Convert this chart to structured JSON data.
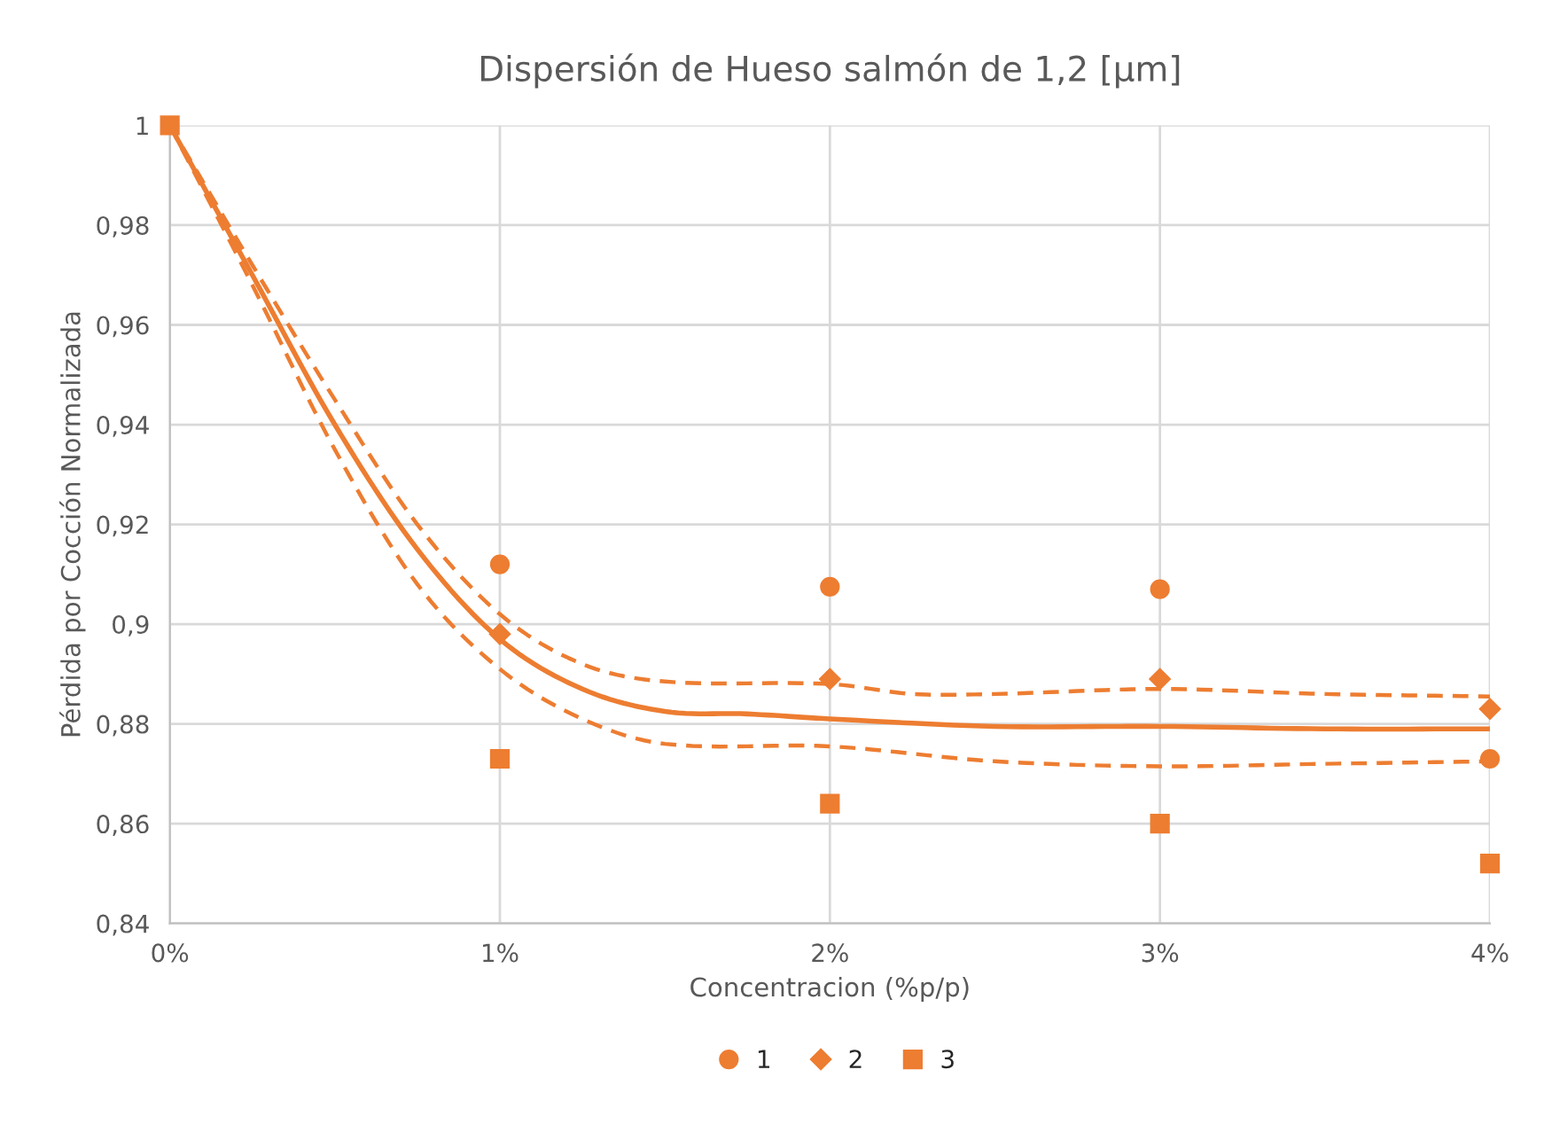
{
  "chart_data": {
    "type": "scatter",
    "title": "Dispersión de Hueso salmón de 1,2 [µm]",
    "xlabel": "Concentracion (%p/p)",
    "ylabel": "Pérdida por Cocción Normalizada",
    "x": [
      0,
      1,
      2,
      3,
      4
    ],
    "series": [
      {
        "name": "1",
        "color": "#ed7d31",
        "marker": "circle",
        "values": [
          null,
          0.912,
          0.9075,
          0.907,
          0.873
        ]
      },
      {
        "name": "2",
        "color": "#ed7d31",
        "marker": "diamond",
        "values": [
          null,
          0.898,
          0.889,
          0.889,
          0.883
        ]
      },
      {
        "name": "3",
        "color": "#ed7d31",
        "marker": "square",
        "values": [
          1,
          0.873,
          0.864,
          0.86,
          0.852
        ]
      },
      {
        "type": "line",
        "color": "#ed7d31",
        "line_style": "solid",
        "marker": "none",
        "x": [
          0,
          0.25,
          0.5,
          0.75,
          1,
          1.25,
          1.5,
          1.75,
          2,
          2.5,
          3,
          3.5,
          4
        ],
        "values": [
          1,
          0.97,
          0.94,
          0.915,
          0.897,
          0.887,
          0.8825,
          0.882,
          0.881,
          0.8795,
          0.8795,
          0.879,
          0.879
        ]
      },
      {
        "type": "line",
        "color": "#ed7d31",
        "line_style": "dashed",
        "marker": "none",
        "x": [
          0,
          0.25,
          0.5,
          0.75,
          1,
          1.25,
          1.5,
          2,
          2.25,
          2.5,
          3,
          3.5,
          4
        ],
        "values": [
          1,
          0.972,
          0.945,
          0.92,
          0.902,
          0.892,
          0.8885,
          0.888,
          0.886,
          0.886,
          0.887,
          0.886,
          0.8855
        ]
      },
      {
        "type": "line",
        "color": "#ed7d31",
        "line_style": "dashed",
        "marker": "none",
        "x": [
          0,
          0.25,
          0.5,
          0.75,
          1,
          1.25,
          1.5,
          2,
          2.5,
          3,
          3.5,
          4
        ],
        "values": [
          1,
          0.968,
          0.935,
          0.908,
          0.891,
          0.881,
          0.876,
          0.8755,
          0.8725,
          0.8715,
          0.872,
          0.8725
        ]
      }
    ],
    "xlim": [
      0,
      4
    ],
    "xticks": [
      {
        "value": 0,
        "label": "0%"
      },
      {
        "value": 1,
        "label": "1%"
      },
      {
        "value": 2,
        "label": "2%"
      },
      {
        "value": 3,
        "label": "3%"
      },
      {
        "value": 4,
        "label": "4%"
      }
    ],
    "ylim": [
      0.84,
      1
    ],
    "yticks": [
      {
        "value": 0.84,
        "label": "0,84"
      },
      {
        "value": 0.86,
        "label": "0,86"
      },
      {
        "value": 0.88,
        "label": "0,88"
      },
      {
        "value": 0.9,
        "label": "0,9"
      },
      {
        "value": 0.92,
        "label": "0,92"
      },
      {
        "value": 0.94,
        "label": "0,94"
      },
      {
        "value": 0.96,
        "label": "0,96"
      },
      {
        "value": 0.98,
        "label": "0,98"
      },
      {
        "value": 1,
        "label": "1"
      }
    ],
    "grid": true,
    "legend": "bottom"
  }
}
